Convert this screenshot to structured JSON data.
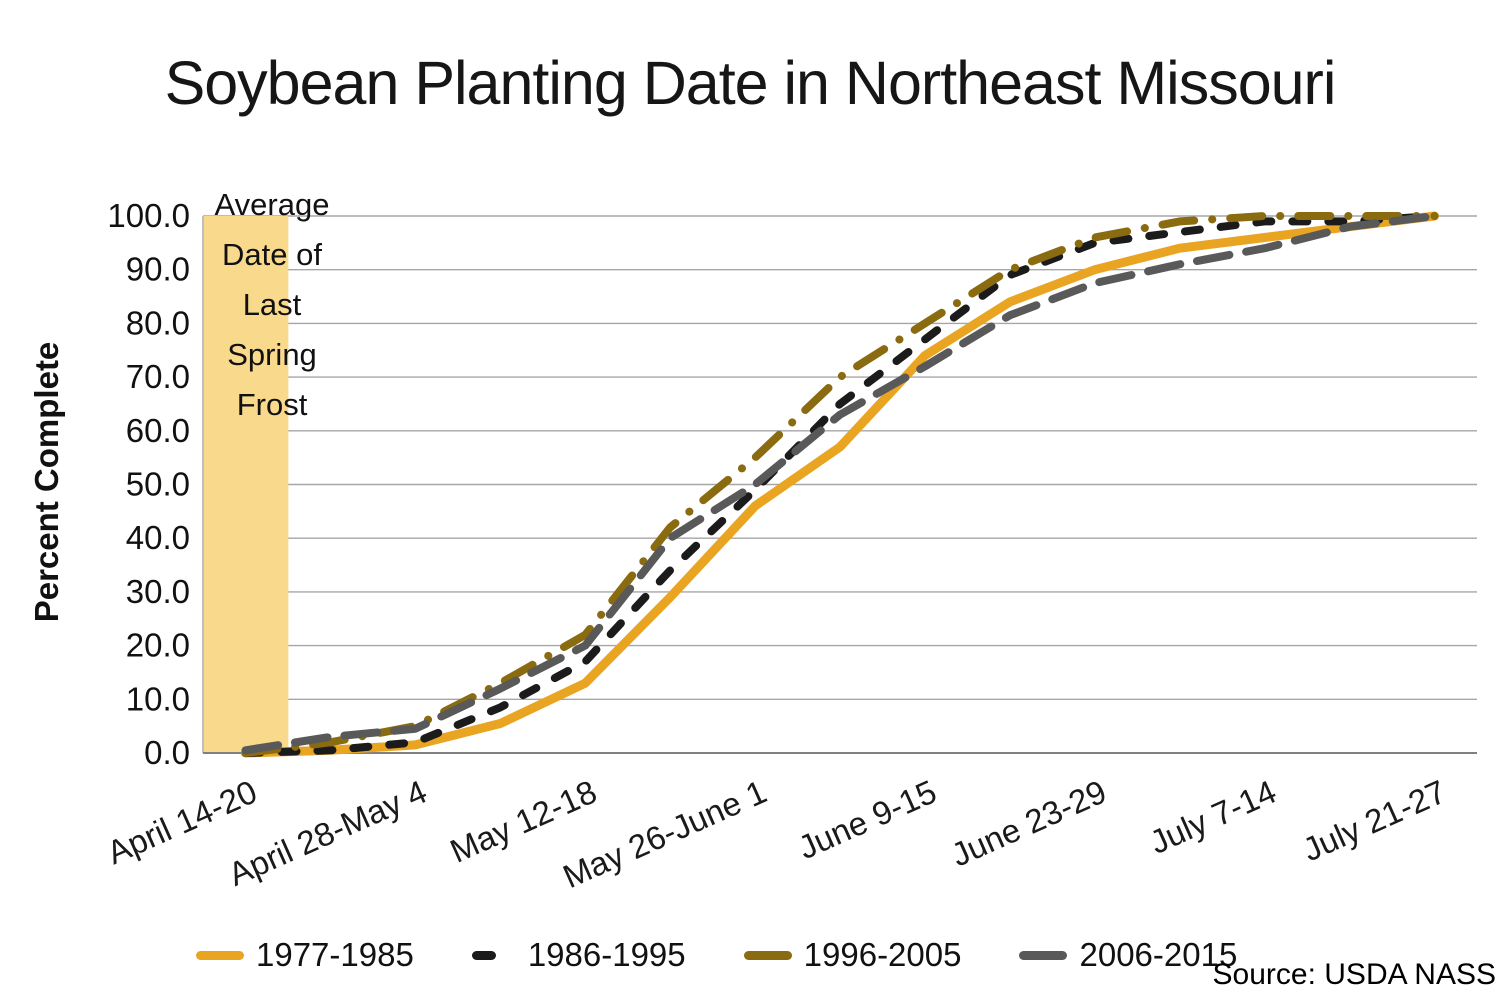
{
  "title": "Soybean Planting Date in Northeast Missouri",
  "source_credit": "Source: USDA NASS",
  "frost_annotation": {
    "lines": [
      "Average",
      "Date of",
      "Last",
      "Spring",
      "Frost"
    ],
    "band_color": "#F9D98B"
  },
  "y_axis": {
    "title": "Percent Complete",
    "tick_labels": [
      "100.0",
      "90.0",
      "80.0",
      "70.0",
      "60.0",
      "50.0",
      "40.0",
      "30.0",
      "20.0",
      "10.0",
      "0.0"
    ]
  },
  "x_axis": {
    "tick_labels": [
      "April 14-20",
      "April 28-May 4",
      "May 12-18",
      "May 26-June 1",
      "June 9-15",
      "June 23-29",
      "July 7-14",
      "July 21-27"
    ],
    "labeled_category_indices": [
      0,
      2,
      4,
      6,
      8,
      10,
      12,
      14
    ]
  },
  "legend": {
    "items": [
      {
        "label": "1977-1985",
        "color": "#E9A521",
        "dash": "solid"
      },
      {
        "label": "1986-1995",
        "color": "#1B1B1B",
        "dash": "dashed"
      },
      {
        "label": "1996-2005",
        "color": "#8A6B10",
        "dash": "long-dash-dot"
      },
      {
        "label": "2006-2015",
        "color": "#595959",
        "dash": "long-dash"
      }
    ]
  },
  "colors": {
    "gridline": "#A6A6A6",
    "axis_line": "#808080",
    "left_axis_line": "#BFBFBF",
    "frost_band": "#F9D98B"
  },
  "chart_data": {
    "type": "line",
    "title": "Soybean Planting Date in Northeast Missouri",
    "xlabel": "",
    "ylabel": "Percent Complete",
    "ylim": [
      0,
      100
    ],
    "y_tick_step": 10,
    "grid": "horizontal",
    "legend_position": "bottom",
    "n_categories": 15,
    "x_tick_positions": [
      0,
      2,
      4,
      6,
      8,
      10,
      12,
      14
    ],
    "x_tick_labels": [
      "April 14-20",
      "April 28-May 4",
      "May 12-18",
      "May 26-June 1",
      "June 9-15",
      "June 23-29",
      "July 7-14",
      "July 21-27"
    ],
    "annotation_band": {
      "label": "Average Date of Last Spring Frost",
      "x_fraction_start": 0.0,
      "x_fraction_end": 0.067
    },
    "series": [
      {
        "name": "1977-1985",
        "color": "#E9A521",
        "style": "solid",
        "values": [
          0,
          0.5,
          1.5,
          5.5,
          13,
          29,
          46,
          57,
          74,
          84,
          90,
          94,
          96,
          98,
          100
        ]
      },
      {
        "name": "1986-1995",
        "color": "#1B1B1B",
        "style": "dashed",
        "values": [
          0,
          0.5,
          2,
          8.5,
          17,
          34,
          49,
          65,
          77,
          89,
          95,
          97,
          99,
          99,
          100
        ]
      },
      {
        "name": "1996-2005",
        "color": "#8A6B10",
        "style": "long-dash-dot",
        "values": [
          0,
          2,
          5,
          13,
          22,
          42,
          55,
          70,
          80,
          90,
          96,
          99,
          100,
          100,
          100
        ]
      },
      {
        "name": "2006-2015",
        "color": "#595959",
        "style": "long-dash",
        "values": [
          0.5,
          3,
          4.5,
          12,
          20,
          40,
          50,
          63,
          72,
          81.5,
          87.5,
          91,
          94,
          98,
          100
        ]
      }
    ]
  }
}
